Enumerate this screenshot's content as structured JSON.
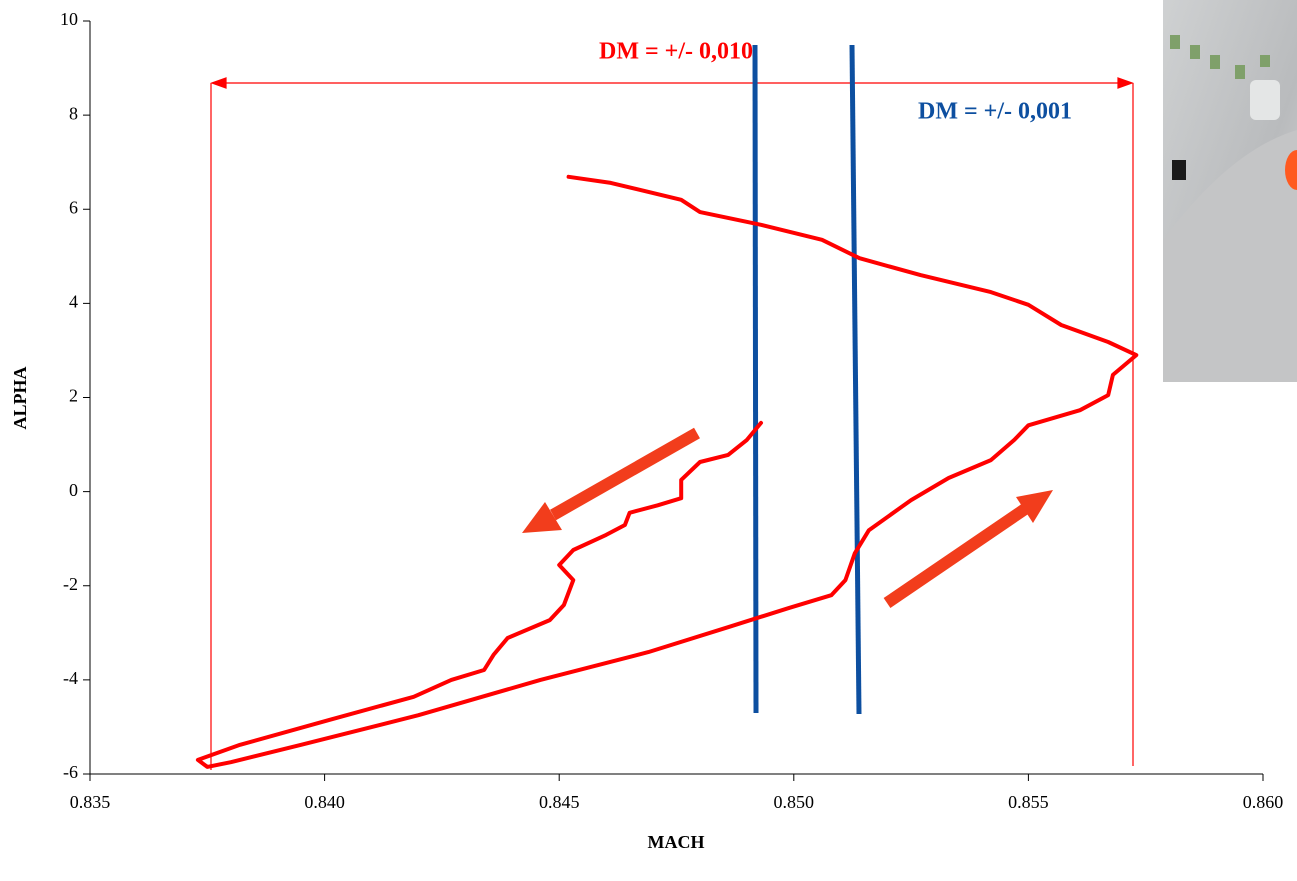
{
  "chart_data": {
    "type": "line",
    "xlabel": "MACH",
    "ylabel": "ALPHA",
    "xlim": [
      0.835,
      0.86
    ],
    "ylim": [
      -6,
      10
    ],
    "xticks": [
      {
        "value": 0.835,
        "label": "0.835"
      },
      {
        "value": 0.84,
        "label": "0.840"
      },
      {
        "value": 0.845,
        "label": "0.845"
      },
      {
        "value": 0.85,
        "label": "0.850"
      },
      {
        "value": 0.855,
        "label": "0.855"
      },
      {
        "value": 0.86,
        "label": "0.860"
      }
    ],
    "yticks": [
      -6,
      -4,
      -2,
      0,
      2,
      4,
      6,
      8,
      10
    ],
    "grid": false,
    "annotations": [
      "DM = +/- 0,010",
      "DM = +/- 0,001"
    ],
    "series": [
      {
        "color": "#ff0000",
        "x": [
          0.8452,
          0.8461,
          0.8476,
          0.848,
          0.8493,
          0.8506,
          0.8514,
          0.8527,
          0.8542,
          0.855,
          0.8557,
          0.8567,
          0.8573,
          0.8568,
          0.8567,
          0.8561,
          0.855,
          0.8547,
          0.8542,
          0.8533,
          0.8525,
          0.8516,
          0.8513,
          0.8511,
          0.8508,
          0.8499,
          0.8486,
          0.8469,
          0.8446,
          0.842,
          0.8395,
          0.838,
          0.8375,
          0.8373,
          0.8382,
          0.8401,
          0.8419,
          0.8427,
          0.8434,
          0.8436,
          0.8439,
          0.8448,
          0.8451,
          0.8453,
          0.845,
          0.8453,
          0.846,
          0.8464,
          0.8465,
          0.8471,
          0.8476,
          0.8476,
          0.848,
          0.8486,
          0.849,
          0.8493
        ],
        "values": [
          6.69,
          6.56,
          6.2,
          5.94,
          5.67,
          5.35,
          4.96,
          4.6,
          4.24,
          3.97,
          3.54,
          3.18,
          2.9,
          2.48,
          2.05,
          1.73,
          1.41,
          1.1,
          0.67,
          0.29,
          -0.18,
          -0.82,
          -1.31,
          -1.88,
          -2.2,
          -2.47,
          -2.88,
          -3.41,
          -4.0,
          -4.75,
          -5.38,
          -5.75,
          -5.85,
          -5.7,
          -5.38,
          -4.85,
          -4.36,
          -4.0,
          -3.79,
          -3.47,
          -3.11,
          -2.73,
          -2.41,
          -1.88,
          -1.56,
          -1.24,
          -0.92,
          -0.71,
          -0.45,
          -0.29,
          -0.14,
          0.25,
          0.63,
          0.78,
          1.1,
          1.46
        ]
      }
    ]
  }
}
